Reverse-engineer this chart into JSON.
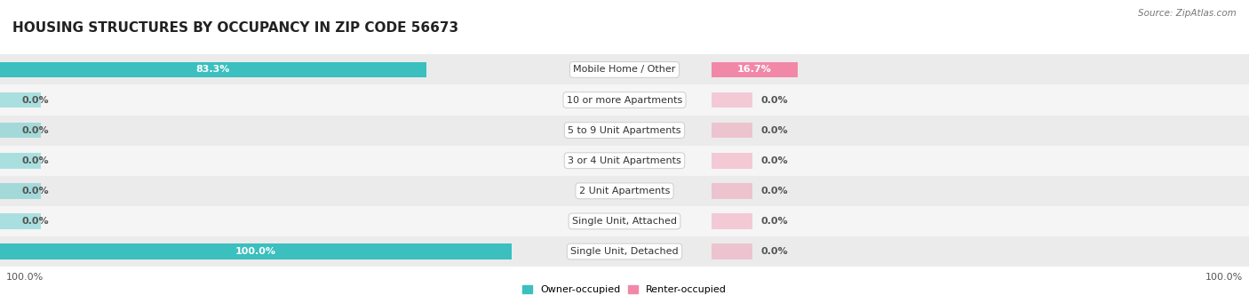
{
  "title": "HOUSING STRUCTURES BY OCCUPANCY IN ZIP CODE 56673",
  "source": "Source: ZipAtlas.com",
  "categories": [
    "Single Unit, Detached",
    "Single Unit, Attached",
    "2 Unit Apartments",
    "3 or 4 Unit Apartments",
    "5 to 9 Unit Apartments",
    "10 or more Apartments",
    "Mobile Home / Other"
  ],
  "owner_values": [
    100.0,
    0.0,
    0.0,
    0.0,
    0.0,
    0.0,
    83.3
  ],
  "renter_values": [
    0.0,
    0.0,
    0.0,
    0.0,
    0.0,
    0.0,
    16.7
  ],
  "owner_color": "#3BBFBF",
  "renter_color": "#F288A8",
  "row_bg_even": "#EBEBEB",
  "row_bg_odd": "#F5F5F5",
  "title_fontsize": 11,
  "label_fontsize": 8,
  "value_fontsize": 8,
  "axis_label_fontsize": 8,
  "bar_height": 0.52,
  "stub_size": 8.0,
  "figsize": [
    14.06,
    3.41
  ],
  "dpi": 100
}
